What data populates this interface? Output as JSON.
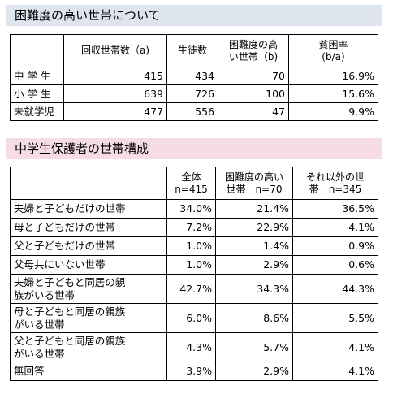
{
  "section1": {
    "title": "困難度の高い世帯について",
    "table": {
      "header": [
        "回収世帯数（a)",
        "生徒数",
        "困難度の高\nい世帯（b)",
        "貧困率\n(b/a)"
      ],
      "rows": [
        [
          "中 学 生",
          "415",
          "434",
          "70",
          "16.9%"
        ],
        [
          "小 学 生",
          "639",
          "726",
          "100",
          "15.6%"
        ],
        [
          "未就学児",
          "477",
          "556",
          "47",
          "9.9%"
        ]
      ]
    }
  },
  "section2": {
    "title": "中学生保護者の世帯構成",
    "table": {
      "header": [
        "全体\nn=415",
        "困難度の高い\n世帯　n=70",
        "それ以外の世\n帯　n=345"
      ],
      "rows": [
        [
          "夫婦と子どもだけの世帯",
          "34.0%",
          "21.4%",
          "36.5%"
        ],
        [
          "母と子どもだけの世帯",
          "7.2%",
          "22.9%",
          "4.1%"
        ],
        [
          "父と子どもだけの世帯",
          "1.0%",
          "1.4%",
          "0.9%"
        ],
        [
          "父母共にいない世帯",
          "1.0%",
          "2.9%",
          "0.6%"
        ],
        [
          "夫婦と子どもと同居の親\n族がいる世帯",
          "42.7%",
          "34.3%",
          "44.3%"
        ],
        [
          "母と子どもと同居の親族\nがいる世帯",
          "6.0%",
          "8.6%",
          "5.5%"
        ],
        [
          "父と子どもと同居の親族\nがいる世帯",
          "4.3%",
          "5.7%",
          "4.1%"
        ],
        [
          "無回答",
          "3.9%",
          "2.9%",
          "4.1%"
        ]
      ]
    }
  }
}
